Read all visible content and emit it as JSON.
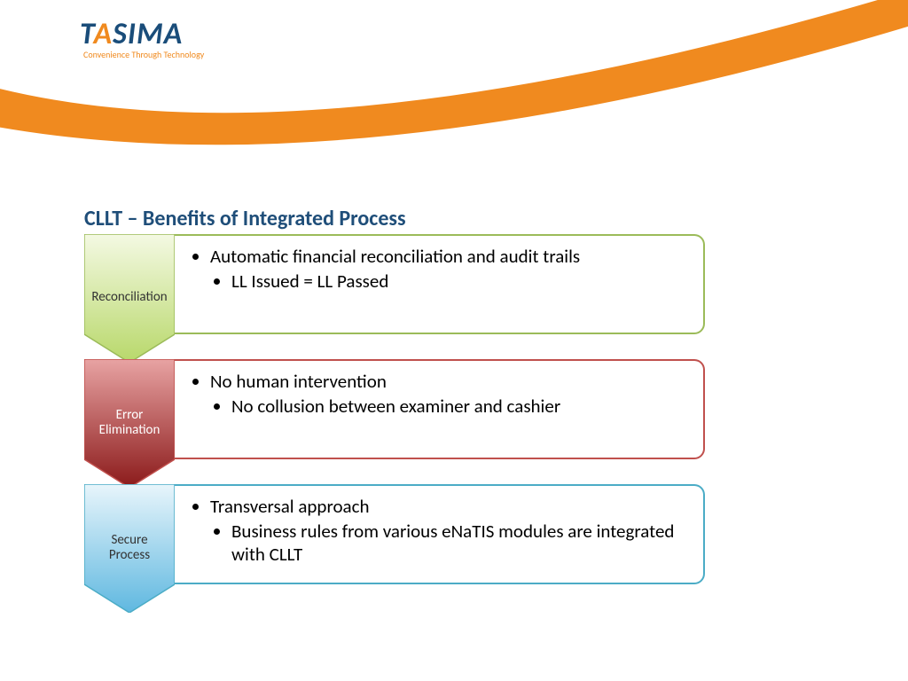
{
  "logo": {
    "text_before": "T",
    "accent": "A",
    "text_after": "SIMA",
    "tagline": "Convenience Through Technology",
    "color_main": "#1a4d7a",
    "color_accent": "#f08a1f"
  },
  "swoosh_color": "#f08a1f",
  "title": "CLLT – Benefits of Integrated Process",
  "title_color": "#1f4e79",
  "title_fontsize": 24,
  "rows": [
    {
      "label": "Reconciliation",
      "chevron_fill_top": "#f4f9e3",
      "chevron_fill_bottom": "#b8d86a",
      "chevron_stroke": "#9bbb59",
      "label_color": "#333333",
      "box_border": "#9bbb59",
      "bullet_main": "Automatic financial reconciliation and audit trails",
      "bullet_sub": "LL Issued = LL Passed"
    },
    {
      "label": "Error Elimination",
      "chevron_fill_top": "#e8a3a3",
      "chevron_fill_bottom": "#8b1a1a",
      "chevron_stroke": "#c0504d",
      "label_color": "#ffffff",
      "box_border": "#c0504d",
      "bullet_main": "No human intervention",
      "bullet_sub": "No collusion between examiner and cashier"
    },
    {
      "label": "Secure Process",
      "chevron_fill_top": "#e8f5fb",
      "chevron_fill_bottom": "#5fb8e0",
      "chevron_stroke": "#4bacc6",
      "label_color": "#333333",
      "box_border": "#4bacc6",
      "bullet_main": "Transversal approach",
      "bullet_sub": "Business rules from various eNaTIS modules are integrated with CLLT"
    }
  ]
}
